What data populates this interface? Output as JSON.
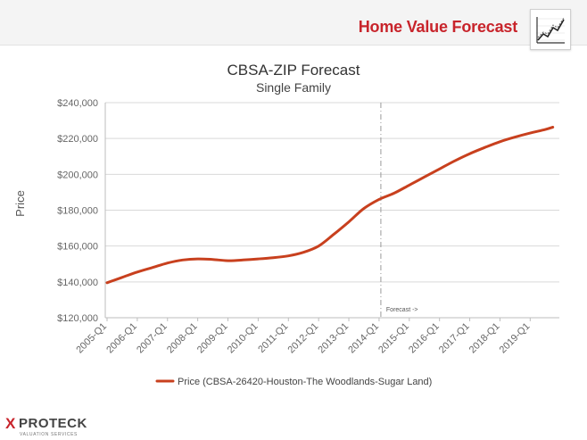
{
  "header": {
    "title": "Home Value Forecast",
    "icon": "line-chart-icon"
  },
  "footer": {
    "logo_mark": "X",
    "logo_word": "PROTECK",
    "logo_sub": "VALUATION SERVICES"
  },
  "chart_data": {
    "type": "line",
    "title": "CBSA-ZIP Forecast",
    "subtitle": "Single Family",
    "ylabel": "Price",
    "xlabel": "",
    "ylim": [
      120000,
      240000
    ],
    "y_ticks": [
      120000,
      140000,
      160000,
      180000,
      200000,
      220000,
      240000
    ],
    "y_tick_labels": [
      "$120,000",
      "$140,000",
      "$160,000",
      "$180,000",
      "$200,000",
      "$220,000",
      "$240,000"
    ],
    "x_tick_labels": [
      "2005-Q1",
      "2006-Q1",
      "2007-Q1",
      "2008-Q1",
      "2009-Q1",
      "2010-Q1",
      "2011-Q1",
      "2012-Q1",
      "2013-Q1",
      "2014-Q1",
      "2015-Q1",
      "2016-Q1",
      "2017-Q1",
      "2018-Q1",
      "2019-Q1"
    ],
    "forecast_marker": {
      "at": "2014-Q1",
      "label": "Forecast ->"
    },
    "grid": true,
    "legend_position": "bottom",
    "series": [
      {
        "name": "Price (CBSA-26420-Houston-The Woodlands-Sugar Land)",
        "color": "#c8401e",
        "values": [
          {
            "x": "2005-Q1",
            "y": 139500
          },
          {
            "x": "2005-Q3",
            "y": 142500
          },
          {
            "x": "2006-Q1",
            "y": 145500
          },
          {
            "x": "2006-Q3",
            "y": 148000
          },
          {
            "x": "2007-Q1",
            "y": 150500
          },
          {
            "x": "2007-Q3",
            "y": 152200
          },
          {
            "x": "2008-Q1",
            "y": 152800
          },
          {
            "x": "2008-Q3",
            "y": 152500
          },
          {
            "x": "2009-Q1",
            "y": 151800
          },
          {
            "x": "2009-Q3",
            "y": 152200
          },
          {
            "x": "2010-Q1",
            "y": 152800
          },
          {
            "x": "2010-Q3",
            "y": 153500
          },
          {
            "x": "2011-Q1",
            "y": 154500
          },
          {
            "x": "2011-Q3",
            "y": 156500
          },
          {
            "x": "2012-Q1",
            "y": 160000
          },
          {
            "x": "2012-Q3",
            "y": 166500
          },
          {
            "x": "2013-Q1",
            "y": 173500
          },
          {
            "x": "2013-Q3",
            "y": 181000
          },
          {
            "x": "2014-Q1",
            "y": 186000
          },
          {
            "x": "2014-Q3",
            "y": 189500
          },
          {
            "x": "2015-Q1",
            "y": 194000
          },
          {
            "x": "2015-Q3",
            "y": 198500
          },
          {
            "x": "2016-Q1",
            "y": 203000
          },
          {
            "x": "2016-Q3",
            "y": 207500
          },
          {
            "x": "2017-Q1",
            "y": 211500
          },
          {
            "x": "2017-Q3",
            "y": 215000
          },
          {
            "x": "2018-Q1",
            "y": 218200
          },
          {
            "x": "2018-Q3",
            "y": 220800
          },
          {
            "x": "2019-Q1",
            "y": 223000
          },
          {
            "x": "2019-Q3",
            "y": 225000
          },
          {
            "x": "2019-Q4",
            "y": 226300
          }
        ]
      }
    ]
  }
}
